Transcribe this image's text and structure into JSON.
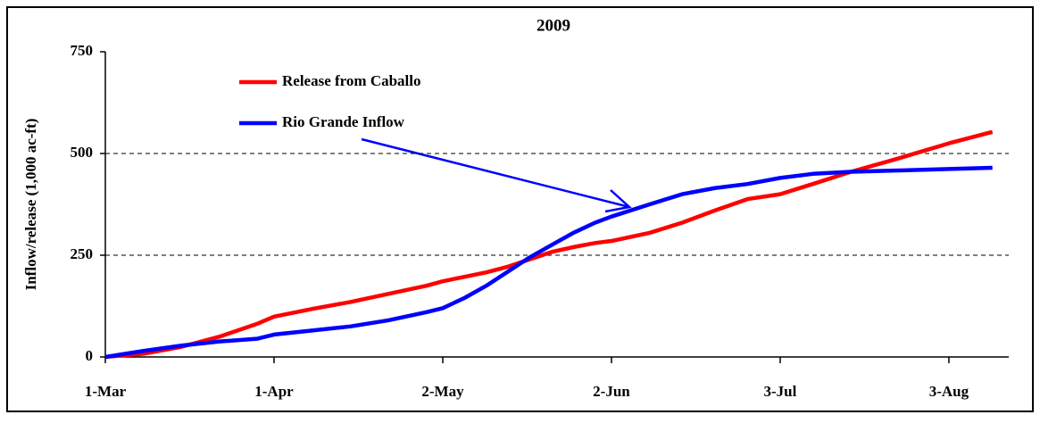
{
  "chart_data": {
    "type": "line",
    "title": "2009",
    "y_label": "Inflow/release (1,000 ac-ft)",
    "x": [
      0,
      7,
      14,
      21,
      28,
      31,
      38,
      45,
      52,
      59,
      62,
      66,
      70,
      74,
      78,
      82,
      86,
      90,
      93,
      100,
      106,
      112,
      118,
      124,
      130,
      137,
      145,
      155,
      163
    ],
    "series": [
      {
        "name": "Release from Caballo",
        "color": "#ff0000",
        "values": [
          0,
          8,
          25,
          50,
          82,
          99,
          118,
          135,
          155,
          175,
          186,
          197,
          208,
          222,
          240,
          258,
          270,
          280,
          285,
          305,
          330,
          360,
          388,
          400,
          425,
          455,
          485,
          525,
          553
        ]
      },
      {
        "name": "Rio Grande Inflow",
        "color": "#0000ff",
        "values": [
          0,
          15,
          28,
          38,
          45,
          55,
          65,
          75,
          90,
          110,
          120,
          145,
          175,
          210,
          245,
          275,
          305,
          330,
          345,
          375,
          400,
          415,
          425,
          440,
          450,
          455,
          458,
          462,
          465
        ]
      }
    ],
    "xlim": [
      0,
      166
    ],
    "xticks": [
      {
        "value": 0,
        "label": "1-Mar"
      },
      {
        "value": 31,
        "label": "1-Apr"
      },
      {
        "value": 62,
        "label": "2-May"
      },
      {
        "value": 93,
        "label": "2-Jun"
      },
      {
        "value": 124,
        "label": "3-Jul"
      },
      {
        "value": 155,
        "label": "3-Aug"
      }
    ],
    "ylim": [
      0,
      750
    ],
    "yticks": [
      0,
      250,
      500,
      750
    ],
    "grid": true,
    "legend": "upper left"
  }
}
